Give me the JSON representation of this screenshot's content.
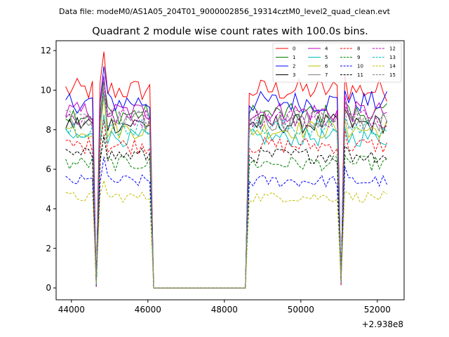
{
  "header": {
    "subtitle": "Data file: modeM0/AS1A05_204T01_9000002856_19314cztM0_level2_quad_clean.evt",
    "title": "Quadrant 2 module wise count rates with 100.0s bins."
  },
  "chart_data": {
    "type": "line",
    "title": "Quadrant 2 module wise count rates with 100.0s bins.",
    "subtitle": "Data file: modeM0/AS1A05_204T01_9000002856_19314cztM0_level2_quad_clean.evt",
    "xlabel": "",
    "ylabel": "",
    "x_offset_label": "+2.938e8",
    "xlim": [
      43600,
      52700
    ],
    "ylim": [
      -0.6,
      12.5
    ],
    "xticks": [
      44000,
      46000,
      48000,
      50000,
      52000
    ],
    "yticks": [
      0,
      2,
      4,
      6,
      8,
      10,
      12
    ],
    "grid": false,
    "legend_location": "top-right",
    "legend_columns": 4,
    "segments": [
      {
        "start": 43850,
        "step": 100,
        "count": 24
      },
      {
        "start": 48550,
        "step": 100,
        "count": 38
      }
    ],
    "series": [
      {
        "name": "0",
        "color": "#ff0000",
        "dash": "solid",
        "level": 10.0
      },
      {
        "name": "1",
        "color": "#008000",
        "dash": "solid",
        "level": 8.8
      },
      {
        "name": "2",
        "color": "#0000ff",
        "dash": "solid",
        "level": 9.4
      },
      {
        "name": "3",
        "color": "#000000",
        "dash": "solid",
        "level": 8.3
      },
      {
        "name": "4",
        "color": "#bf00bf",
        "dash": "solid",
        "level": 8.9
      },
      {
        "name": "5",
        "color": "#00bfbf",
        "dash": "solid",
        "level": 7.6
      },
      {
        "name": "6",
        "color": "#bfbf00",
        "dash": "solid",
        "level": 8.0
      },
      {
        "name": "7",
        "color": "#808080",
        "dash": "solid",
        "level": 8.4
      },
      {
        "name": "8",
        "color": "#ff0000",
        "dash": "dashed",
        "level": 7.2
      },
      {
        "name": "9",
        "color": "#008000",
        "dash": "dashed",
        "level": 6.3
      },
      {
        "name": "10",
        "color": "#0000ff",
        "dash": "dashed",
        "level": 5.4
      },
      {
        "name": "11",
        "color": "#000000",
        "dash": "dashed",
        "level": 6.7
      },
      {
        "name": "12",
        "color": "#bf00bf",
        "dash": "dashed",
        "level": 8.6
      },
      {
        "name": "13",
        "color": "#00bfbf",
        "dash": "dashed",
        "level": 8.1
      },
      {
        "name": "14",
        "color": "#bfbf00",
        "dash": "dashed",
        "level": 4.6
      },
      {
        "name": "15",
        "color": "#808080",
        "dash": "dashed",
        "level": 8.5
      }
    ]
  }
}
